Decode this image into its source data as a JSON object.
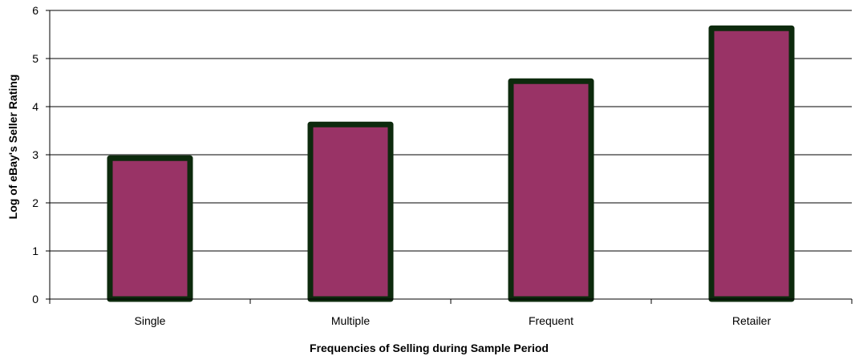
{
  "chart_data": {
    "type": "bar",
    "title": "",
    "xlabel": "Frequencies of Selling during Sample Period",
    "ylabel": "Log of eBay's Seller Rating",
    "categories": [
      "Single",
      "Multiple",
      "Frequent",
      "Retailer"
    ],
    "values": [
      2.93,
      3.63,
      4.53,
      5.63
    ],
    "ylim": [
      0,
      6
    ],
    "yticks": [
      "0",
      "1",
      "2",
      "3",
      "4",
      "5",
      "6"
    ],
    "grid": true,
    "legend": "none",
    "colors": {
      "bar_fill": "#993366",
      "bar_border": "#0d2a0d",
      "gridline": "#000000",
      "axis": "#000000"
    }
  }
}
